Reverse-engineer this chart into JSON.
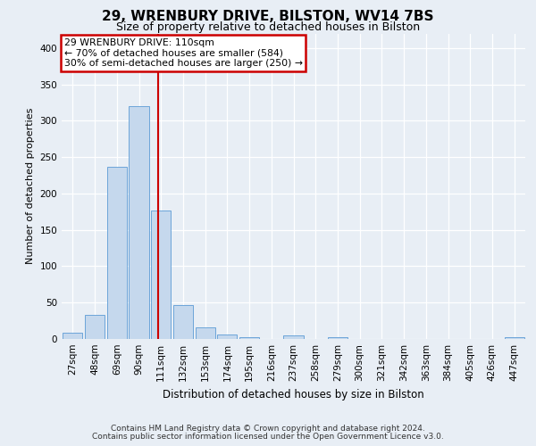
{
  "title_line1": "29, WRENBURY DRIVE, BILSTON, WV14 7BS",
  "title_line2": "Size of property relative to detached houses in Bilston",
  "xlabel": "Distribution of detached houses by size in Bilston",
  "ylabel": "Number of detached properties",
  "footer_line1": "Contains HM Land Registry data © Crown copyright and database right 2024.",
  "footer_line2": "Contains public sector information licensed under the Open Government Licence v3.0.",
  "bar_labels": [
    "27sqm",
    "48sqm",
    "69sqm",
    "90sqm",
    "111sqm",
    "132sqm",
    "153sqm",
    "174sqm",
    "195sqm",
    "216sqm",
    "237sqm",
    "258sqm",
    "279sqm",
    "300sqm",
    "321sqm",
    "342sqm",
    "363sqm",
    "384sqm",
    "405sqm",
    "426sqm",
    "447sqm"
  ],
  "bar_values": [
    8,
    33,
    237,
    320,
    176,
    46,
    16,
    6,
    2,
    0,
    5,
    0,
    2,
    0,
    0,
    0,
    0,
    0,
    0,
    0,
    2
  ],
  "bar_color": "#c5d8ed",
  "bar_edge_color": "#5b9bd5",
  "annotation_line1": "29 WRENBURY DRIVE: 110sqm",
  "annotation_line2": "← 70% of detached houses are smaller (584)",
  "annotation_line3": "30% of semi-detached houses are larger (250) →",
  "vline_x_index": 3.88,
  "ylim": [
    0,
    420
  ],
  "yticks": [
    0,
    50,
    100,
    150,
    200,
    250,
    300,
    350,
    400
  ],
  "fig_bg_color": "#e8eef5",
  "plot_bg_color": "#e8eef5",
  "annotation_box_color": "#ffffff",
  "annotation_box_edge": "#cc0000",
  "vline_color": "#cc0000",
  "title1_fontsize": 11,
  "title2_fontsize": 9,
  "ylabel_fontsize": 8,
  "xlabel_fontsize": 8.5,
  "tick_fontsize": 7.5,
  "footer_fontsize": 6.5,
  "ann_fontsize": 7.8
}
